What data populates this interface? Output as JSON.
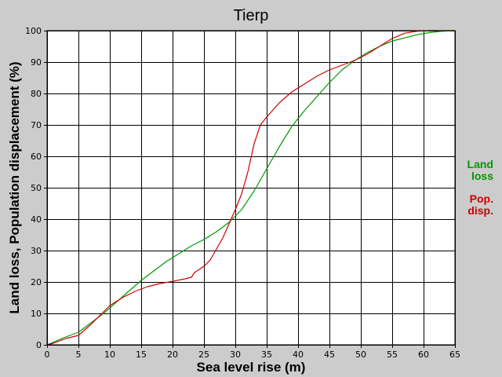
{
  "chart_data": {
    "type": "line",
    "title": "Tierp",
    "xlabel": "Sea level rise (m)",
    "ylabel": "Land loss, Population displacement (%)",
    "xlim": [
      0,
      65
    ],
    "ylim": [
      0,
      100
    ],
    "xticks": [
      0,
      5,
      10,
      15,
      20,
      25,
      30,
      35,
      40,
      45,
      50,
      55,
      60,
      65
    ],
    "yticks": [
      0,
      10,
      20,
      30,
      40,
      50,
      60,
      70,
      80,
      90,
      100
    ],
    "grid": true,
    "legend_position": "right",
    "series": [
      {
        "name": "Land loss",
        "legend_lines": [
          "Land",
          "loss"
        ],
        "color": "#009900",
        "points": [
          [
            0,
            0
          ],
          [
            1,
            0.8
          ],
          [
            3,
            2.5
          ],
          [
            5,
            4
          ],
          [
            7,
            7
          ],
          [
            9,
            10
          ],
          [
            11,
            13.5
          ],
          [
            13,
            17
          ],
          [
            15,
            20.5
          ],
          [
            17,
            23.5
          ],
          [
            19,
            26.5
          ],
          [
            21,
            29
          ],
          [
            23,
            31.5
          ],
          [
            25,
            33.5
          ],
          [
            27,
            36
          ],
          [
            29,
            39
          ],
          [
            31,
            43
          ],
          [
            33,
            49
          ],
          [
            35,
            56
          ],
          [
            37,
            63
          ],
          [
            39,
            69.5
          ],
          [
            41,
            74.5
          ],
          [
            43,
            79
          ],
          [
            45,
            83.5
          ],
          [
            47,
            87.5
          ],
          [
            49,
            90.5
          ],
          [
            51,
            93
          ],
          [
            53,
            95
          ],
          [
            55,
            96.7
          ],
          [
            57,
            97.7
          ],
          [
            59,
            98.7
          ],
          [
            61,
            99.4
          ],
          [
            63,
            99.8
          ],
          [
            65,
            100
          ]
        ]
      },
      {
        "name": "Pop. disp.",
        "legend_lines": [
          "Pop.",
          "disp."
        ],
        "color": "#cc0000",
        "points": [
          [
            0,
            0
          ],
          [
            1,
            0.5
          ],
          [
            3,
            2
          ],
          [
            5,
            3
          ],
          [
            7,
            6.5
          ],
          [
            9,
            10.5
          ],
          [
            10,
            12.5
          ],
          [
            12,
            15
          ],
          [
            14,
            17
          ],
          [
            16,
            18.5
          ],
          [
            18,
            19.5
          ],
          [
            20,
            20.2
          ],
          [
            22,
            21
          ],
          [
            23,
            21.5
          ],
          [
            23.5,
            23
          ],
          [
            25,
            25
          ],
          [
            26,
            27
          ],
          [
            27,
            30.5
          ],
          [
            28,
            34
          ],
          [
            29,
            38.5
          ],
          [
            30,
            43
          ],
          [
            31,
            48
          ],
          [
            32,
            55
          ],
          [
            33,
            64
          ],
          [
            34,
            70
          ],
          [
            35,
            72.5
          ],
          [
            37,
            77
          ],
          [
            39,
            80.5
          ],
          [
            41,
            83
          ],
          [
            43,
            85.5
          ],
          [
            45,
            87.5
          ],
          [
            47,
            89
          ],
          [
            49,
            90.5
          ],
          [
            51,
            92.5
          ],
          [
            53,
            95
          ],
          [
            55,
            97.5
          ],
          [
            57,
            99.2
          ],
          [
            59,
            99.8
          ],
          [
            61,
            100
          ],
          [
            65,
            100
          ]
        ]
      }
    ]
  }
}
